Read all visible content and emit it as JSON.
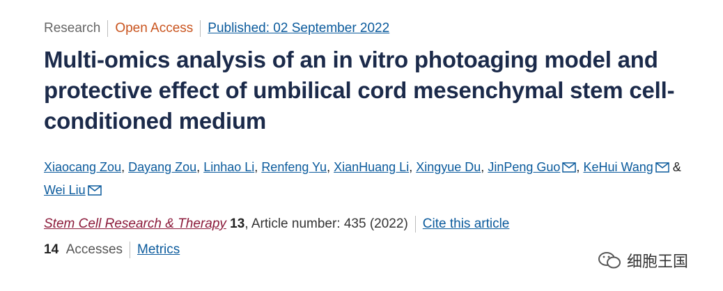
{
  "header": {
    "type": "Research",
    "access": "Open Access",
    "published": "Published: 02 September 2022"
  },
  "title": "Multi-omics analysis of an in vitro photoaging model and protective effect of umbilical cord mesenchymal stem cell-conditioned medium",
  "authors": [
    {
      "name": "Xiaocang Zou",
      "corresponding": false
    },
    {
      "name": "Dayang Zou",
      "corresponding": false
    },
    {
      "name": "Linhao Li",
      "corresponding": false
    },
    {
      "name": "Renfeng Yu",
      "corresponding": false
    },
    {
      "name": "XianHuang Li",
      "corresponding": false
    },
    {
      "name": "Xingyue Du",
      "corresponding": false
    },
    {
      "name": "JinPeng Guo",
      "corresponding": true
    },
    {
      "name": "KeHui Wang",
      "corresponding": true
    },
    {
      "name": "Wei Liu",
      "corresponding": true
    }
  ],
  "author_separator": ",",
  "author_conjunction": "&",
  "journal": {
    "name": "Stem Cell Research & Therapy",
    "volume": "13",
    "details": ", Article number: 435 (2022)"
  },
  "cite": "Cite this article",
  "metrics": {
    "count": "14",
    "label": "Accesses",
    "link": "Metrics"
  },
  "watermark": "细胞王国"
}
